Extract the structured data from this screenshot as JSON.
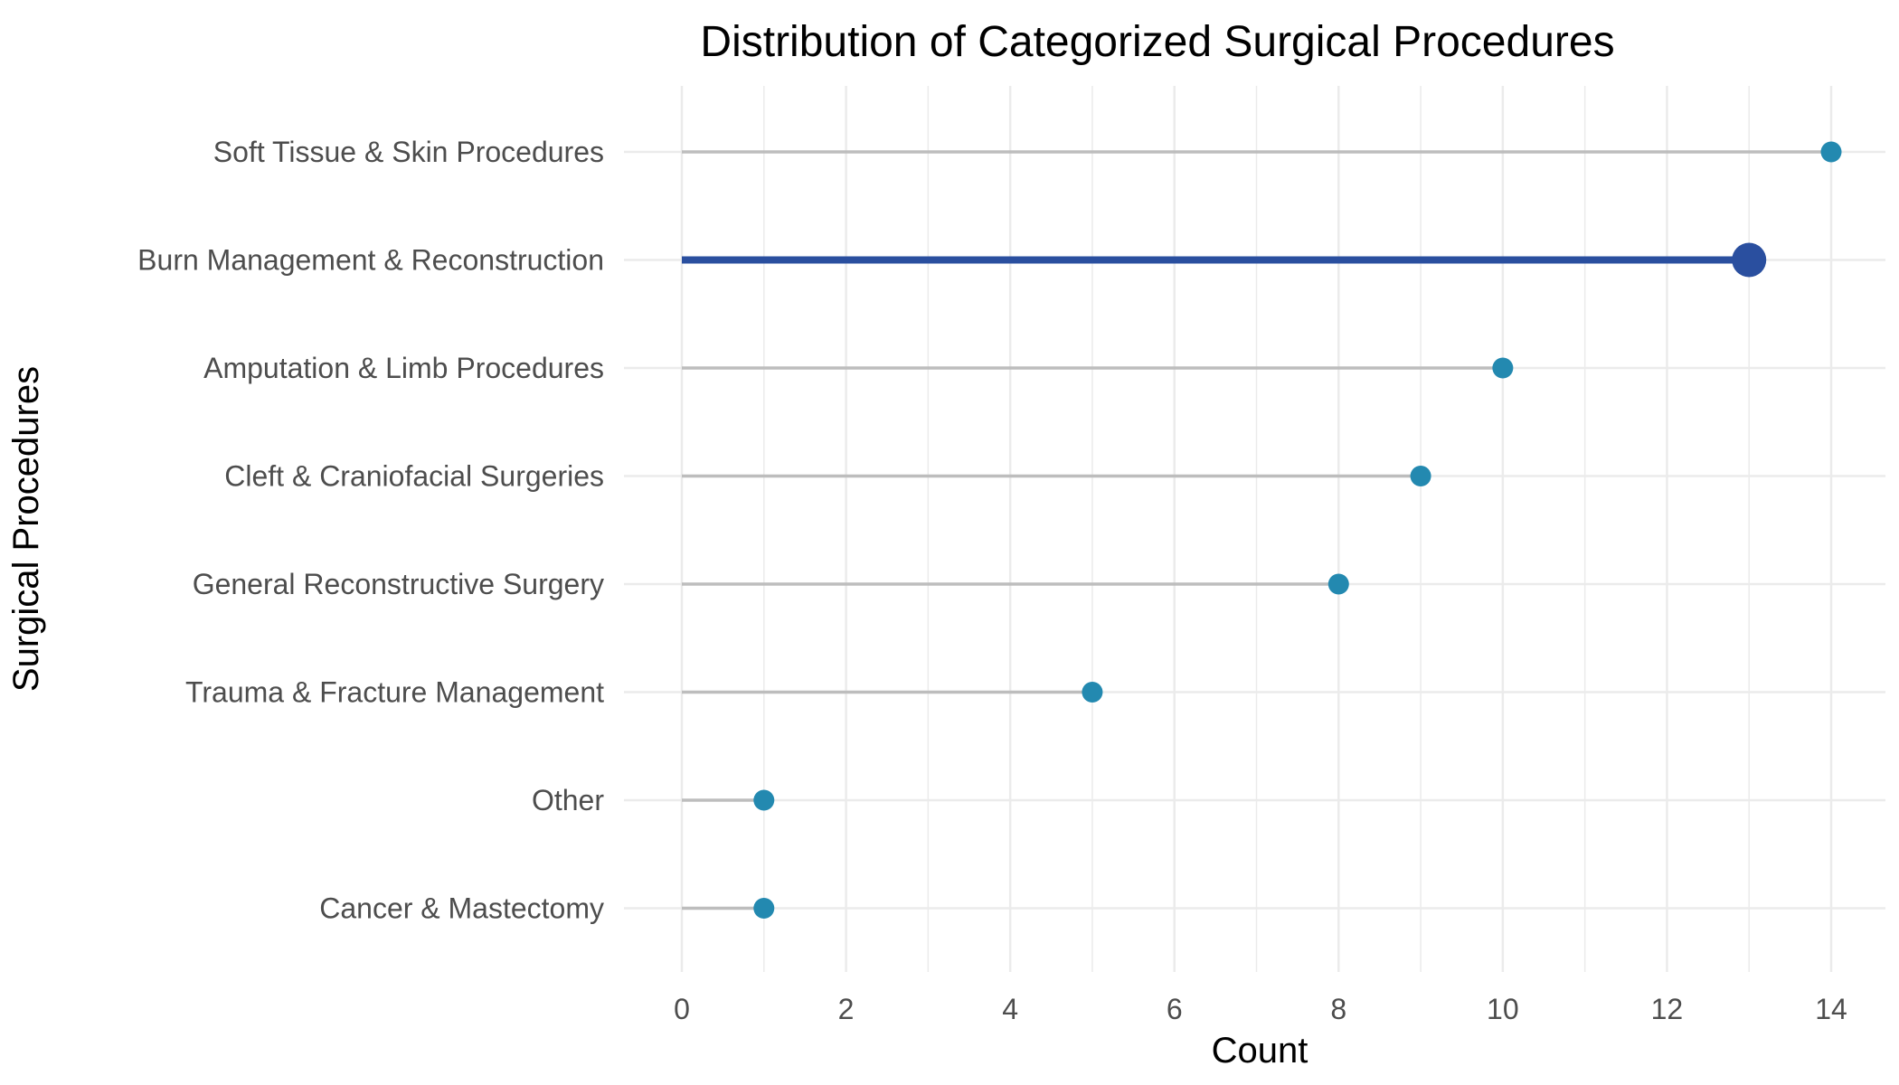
{
  "chart_data": {
    "type": "lollipop",
    "title": "Distribution of Categorized Surgical Procedures",
    "xlabel": "Count",
    "ylabel": "Surgical Procedures",
    "xlim": [
      0,
      14
    ],
    "x_ticks": [
      0,
      2,
      4,
      6,
      8,
      10,
      12,
      14
    ],
    "x_tick_labels": [
      "0",
      "2",
      "4",
      "6",
      "8",
      "10",
      "12",
      "14"
    ],
    "grid": true,
    "orientation": "horizontal",
    "categories": [
      "Soft Tissue & Skin Procedures",
      "Burn Management & Reconstruction",
      "Amputation & Limb Procedures",
      "Cleft & Craniofacial Surgeries",
      "General Reconstructive Surgery",
      "Trauma & Fracture Management",
      "Other",
      "Cancer & Mastectomy"
    ],
    "values": [
      14,
      13,
      10,
      9,
      8,
      5,
      1,
      1
    ],
    "highlighted_category": "Burn Management & Reconstruction",
    "colors": {
      "point": "#2389b0",
      "stem": "#bdbdbd",
      "highlight": "#2a4f9f",
      "grid": "#ebebeb",
      "tick_text": "#4d4d4d",
      "text": "#000000"
    }
  }
}
